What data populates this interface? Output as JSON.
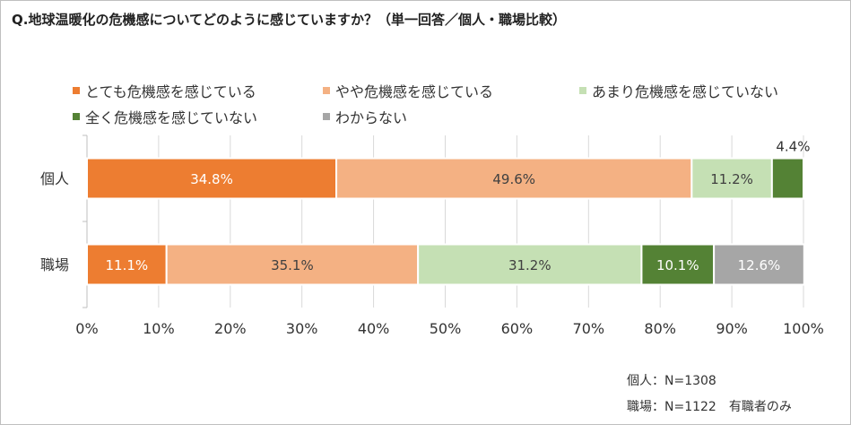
{
  "chart_data": {
    "type": "bar",
    "orientation": "horizontal",
    "stacked": true,
    "percent": true,
    "title": "Q.地球温暖化の危機感についてどのように感じていますか？（単一回答／個人・職場比較）",
    "categories": [
      "個人",
      "職場"
    ],
    "series": [
      {
        "name": "とても危機感を感じている",
        "color": "#ED7D31",
        "values": [
          34.8,
          11.1
        ],
        "labels": [
          "34.8%",
          "11.1%"
        ]
      },
      {
        "name": "やや危機感を感じている",
        "color": "#F4B183",
        "values": [
          49.6,
          35.1
        ],
        "labels": [
          "49.6%",
          "35.1%"
        ]
      },
      {
        "name": "あまり危機感を感じていない",
        "color": "#C5E0B4",
        "values": [
          11.2,
          31.2
        ],
        "labels": [
          "11.2%",
          "31.2%"
        ]
      },
      {
        "name": "全く危機感を感じていない",
        "color": "#548235",
        "values": [
          4.4,
          10.1
        ],
        "labels": [
          "4.4%",
          "10.1%"
        ]
      },
      {
        "name": "わからない",
        "color": "#A6A6A6",
        "values": [
          0,
          12.6
        ],
        "labels": [
          "",
          "12.6%"
        ]
      }
    ],
    "xlim": [
      0,
      100
    ],
    "xticks": [
      "0%",
      "10%",
      "20%",
      "30%",
      "40%",
      "50%",
      "60%",
      "70%",
      "80%",
      "90%",
      "100%"
    ],
    "grid": true,
    "legend_position": "top",
    "notes": [
      "個人：N=1308",
      "職場：N=1122　有職者のみ"
    ]
  }
}
